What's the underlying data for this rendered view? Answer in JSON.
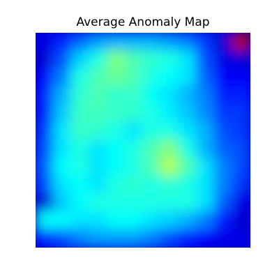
{
  "chart_data": {
    "type": "heatmap",
    "title": "Average Anomaly Map",
    "colormap": "jet",
    "value_range": [
      0,
      1
    ],
    "axes_visible": false,
    "rows": 12,
    "cols": 12,
    "values": [
      [
        0.1,
        0.15,
        0.22,
        0.28,
        0.3,
        0.3,
        0.3,
        0.28,
        0.25,
        0.18,
        0.08,
        0.95
      ],
      [
        0.08,
        0.2,
        0.33,
        0.4,
        0.5,
        0.45,
        0.42,
        0.4,
        0.35,
        0.2,
        0.1,
        0.08
      ],
      [
        0.12,
        0.25,
        0.4,
        0.45,
        0.48,
        0.45,
        0.4,
        0.38,
        0.35,
        0.22,
        0.12,
        0.12
      ],
      [
        0.15,
        0.3,
        0.42,
        0.45,
        0.42,
        0.43,
        0.38,
        0.35,
        0.3,
        0.25,
        0.15,
        0.15
      ],
      [
        0.15,
        0.32,
        0.43,
        0.44,
        0.43,
        0.42,
        0.4,
        0.36,
        0.32,
        0.26,
        0.18,
        0.18
      ],
      [
        0.18,
        0.35,
        0.43,
        0.42,
        0.4,
        0.35,
        0.4,
        0.4,
        0.35,
        0.3,
        0.2,
        0.18
      ],
      [
        0.2,
        0.35,
        0.4,
        0.35,
        0.38,
        0.4,
        0.45,
        0.5,
        0.4,
        0.3,
        0.22,
        0.2
      ],
      [
        0.22,
        0.38,
        0.4,
        0.35,
        0.38,
        0.4,
        0.45,
        0.55,
        0.45,
        0.35,
        0.25,
        0.2
      ],
      [
        0.2,
        0.35,
        0.38,
        0.35,
        0.4,
        0.42,
        0.4,
        0.42,
        0.4,
        0.35,
        0.25,
        0.18
      ],
      [
        0.08,
        0.32,
        0.38,
        0.4,
        0.4,
        0.4,
        0.4,
        0.4,
        0.4,
        0.35,
        0.22,
        0.1
      ],
      [
        0.38,
        0.38,
        0.35,
        0.35,
        0.38,
        0.38,
        0.35,
        0.33,
        0.3,
        0.25,
        0.15,
        0.08
      ],
      [
        0.15,
        0.2,
        0.25,
        0.28,
        0.28,
        0.28,
        0.25,
        0.2,
        0.15,
        0.12,
        0.1,
        0.1
      ]
    ]
  }
}
